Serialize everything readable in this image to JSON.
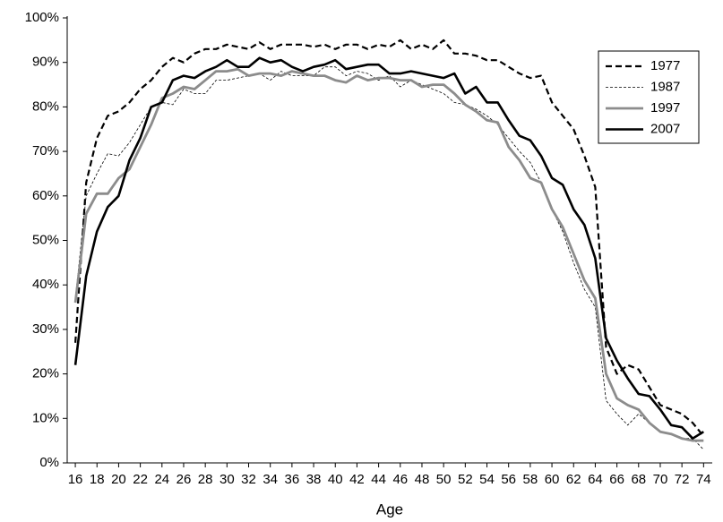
{
  "chart_data": {
    "type": "line",
    "x_label": "Age",
    "x": [
      16,
      17,
      18,
      19,
      20,
      21,
      22,
      23,
      24,
      25,
      26,
      27,
      28,
      29,
      30,
      31,
      32,
      33,
      34,
      35,
      36,
      37,
      38,
      39,
      40,
      41,
      42,
      43,
      44,
      45,
      46,
      47,
      48,
      49,
      50,
      51,
      52,
      53,
      54,
      55,
      56,
      57,
      58,
      59,
      60,
      61,
      62,
      63,
      64,
      65,
      66,
      67,
      68,
      69,
      70,
      71,
      72,
      73,
      74
    ],
    "xlim": [
      15.25,
      74.8
    ],
    "xticks": [
      16,
      18,
      20,
      22,
      24,
      26,
      28,
      30,
      32,
      34,
      36,
      38,
      40,
      42,
      44,
      46,
      48,
      50,
      52,
      54,
      56,
      58,
      60,
      62,
      64,
      66,
      68,
      70,
      72,
      74
    ],
    "ylim": [
      0,
      100
    ],
    "yticks": [
      {
        "value": 0,
        "label": "0%"
      },
      {
        "value": 10,
        "label": "10%"
      },
      {
        "value": 20,
        "label": "20%"
      },
      {
        "value": 30,
        "label": "30%"
      },
      {
        "value": 40,
        "label": "40%"
      },
      {
        "value": 50,
        "label": "50%"
      },
      {
        "value": 60,
        "label": "60%"
      },
      {
        "value": 70,
        "label": "70%"
      },
      {
        "value": 80,
        "label": "80%"
      },
      {
        "value": 90,
        "label": "90%"
      },
      {
        "value": 100,
        "label": "100%"
      }
    ],
    "legend": "top-right",
    "series": [
      {
        "name": "1977",
        "color": "#000000",
        "line_width": 2.2,
        "dash": "7,4",
        "values": [
          27,
          63,
          73,
          78,
          79,
          81,
          84,
          86,
          89,
          91,
          90,
          92,
          93,
          93,
          94,
          93.5,
          93,
          94.5,
          93,
          94,
          94,
          94,
          93.5,
          94,
          93,
          94,
          94,
          93,
          94,
          93.5,
          95,
          93,
          94,
          93,
          95,
          92,
          92,
          91.5,
          90.5,
          90.5,
          89,
          87.5,
          86.5,
          87,
          81,
          78,
          75,
          69,
          62,
          26,
          20,
          22,
          21,
          17,
          13,
          12,
          11,
          9,
          6
        ]
      },
      {
        "name": "1987",
        "color": "#000000",
        "line_width": 0.8,
        "dash": "3,2",
        "values": [
          37,
          60,
          65,
          69.5,
          69,
          72,
          76,
          80,
          81,
          80.5,
          84,
          83,
          83,
          86,
          86,
          86.5,
          87,
          87.5,
          86,
          88,
          87,
          87,
          87,
          89,
          89,
          87,
          88,
          87.5,
          86,
          87,
          84.5,
          86,
          85,
          84,
          83,
          81,
          80.5,
          79.5,
          78,
          76,
          73,
          70,
          67.5,
          63,
          57,
          52,
          45,
          39,
          35,
          14,
          11,
          8.5,
          11,
          9,
          7,
          6.5,
          5.5,
          5.5,
          3
        ]
      },
      {
        "name": "1997",
        "color": "#8c8c8c",
        "line_width": 2.8,
        "dash": "none",
        "values": [
          36,
          56,
          60.5,
          60.5,
          64,
          66,
          71,
          76,
          82,
          83,
          84.5,
          84,
          86,
          88,
          88,
          88.5,
          87,
          87.5,
          87.5,
          87,
          88,
          87.5,
          87,
          87,
          86,
          85.5,
          87,
          86,
          86.5,
          86.5,
          86,
          86,
          84.5,
          85,
          85,
          83,
          80.5,
          79,
          77,
          76.5,
          71,
          68,
          64,
          63,
          57,
          53,
          47,
          41,
          37,
          20,
          14.5,
          13,
          12,
          9,
          7,
          6.5,
          5.5,
          5,
          5
        ]
      },
      {
        "name": "2007",
        "color": "#000000",
        "line_width": 2.6,
        "dash": "none",
        "values": [
          22,
          42,
          52,
          57.5,
          60,
          68,
          73,
          80,
          81,
          86,
          87,
          86.5,
          88,
          89,
          90.5,
          89,
          89,
          91,
          90,
          90.5,
          89,
          88,
          89,
          89.5,
          90.5,
          88.5,
          89,
          89.5,
          89.5,
          87.5,
          87.5,
          88,
          87.5,
          87,
          86.5,
          87.5,
          83,
          84.5,
          81,
          81,
          77,
          73.5,
          72.5,
          69,
          64,
          62.5,
          57,
          53.5,
          46,
          28,
          23,
          19,
          15.5,
          15,
          12,
          8.5,
          8,
          5.5,
          7
        ]
      }
    ]
  }
}
